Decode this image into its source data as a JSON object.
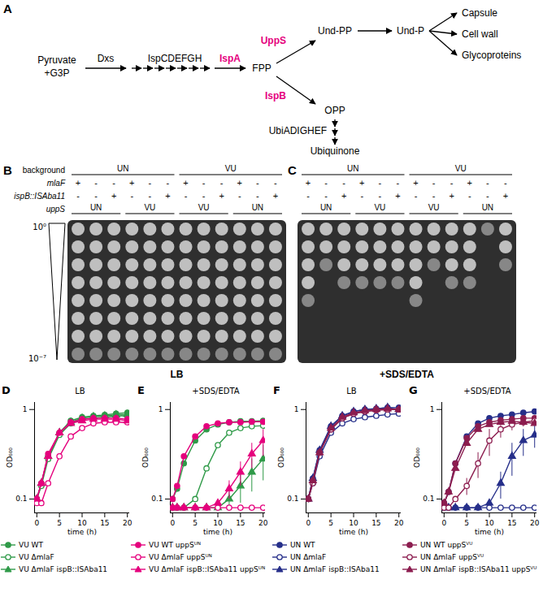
{
  "diagram": {
    "panel": "A",
    "metabolites": [
      "Pyruvate",
      "+G3P",
      "FPP",
      "Und-PP",
      "Und-P",
      "Capsule",
      "Cell wall",
      "Glycoproteins",
      "OPP",
      "Ubiquinone"
    ],
    "enzymes": [
      {
        "label": "Dxs",
        "highlight": false
      },
      {
        "label": "IspCDEFGH",
        "highlight": false
      },
      {
        "label": "IspA",
        "highlight": true
      },
      {
        "label": "UppS",
        "highlight": true
      },
      {
        "label": "IspB",
        "highlight": true
      },
      {
        "label": "UbiADIGHEF",
        "highlight": false
      }
    ],
    "highlight_color": "#e5007d"
  },
  "plates": {
    "row_labels": [
      "background",
      "mlaF",
      "ispB::ISAba11",
      "uppS"
    ],
    "background": [
      {
        "label": "UN",
        "span": 6
      },
      {
        "label": "VU",
        "span": 6
      }
    ],
    "mlaF": [
      "+",
      "-",
      "-",
      "+",
      "-",
      "-",
      "+",
      "-",
      "-",
      "+",
      "-",
      "-"
    ],
    "ispB": [
      "-",
      "-",
      "+",
      "-",
      "-",
      "+",
      "-",
      "-",
      "+",
      "-",
      "-",
      "+"
    ],
    "uppS": [
      {
        "label": "UN",
        "span": 3
      },
      {
        "label": "VU",
        "span": 3
      },
      {
        "label": "VU",
        "span": 3
      },
      {
        "label": "UN",
        "span": 3
      }
    ],
    "dilution_labels": [
      "10⁰",
      "10⁻⁷"
    ],
    "dilutions": 8,
    "panels": [
      {
        "panel": "B",
        "caption": "LB",
        "growth_rows": [
          8,
          8,
          8,
          8,
          8,
          8,
          8,
          8,
          8,
          8,
          8,
          8
        ]
      },
      {
        "panel": "C",
        "caption": "+SDS/EDTA",
        "growth_rows": [
          5,
          3,
          4,
          4,
          4,
          4,
          5,
          3,
          4,
          4,
          1,
          3
        ]
      }
    ]
  },
  "chart_data": [
    {
      "type": "line",
      "panel": "D",
      "title": "LB",
      "xlabel": "time (h)",
      "ylabel": "OD₆₀₀",
      "log": "y",
      "legend": "bottom",
      "xlim": [
        -0.5,
        20.5
      ],
      "xticks": [
        0,
        5,
        10,
        15,
        20
      ],
      "ylim": [
        0.07,
        1.2
      ],
      "yticks": [
        0.1,
        1
      ],
      "x": [
        0,
        1,
        2.5,
        5,
        7.5,
        10,
        12.5,
        15,
        17.5,
        20
      ],
      "series": [
        {
          "name": "VU WT",
          "color": "#2f9a48",
          "marker": "circle",
          "values": [
            0.1,
            0.15,
            0.3,
            0.55,
            0.75,
            0.82,
            0.85,
            0.87,
            0.9,
            0.92
          ]
        },
        {
          "name": "VU ΔmlaF",
          "color": "#2f9a48",
          "marker": "circle-open",
          "values": [
            0.1,
            0.14,
            0.28,
            0.52,
            0.7,
            0.78,
            0.8,
            0.82,
            0.85,
            0.85
          ]
        },
        {
          "name": "VU ΔmlaF ispB::ISAba11",
          "color": "#2f9a48",
          "marker": "triangle",
          "values": [
            0.1,
            0.15,
            0.3,
            0.55,
            0.72,
            0.8,
            0.83,
            0.85,
            0.87,
            0.88
          ]
        },
        {
          "name": "VU WT uppSᵁᴺ",
          "color": "#e5007d",
          "marker": "circle",
          "values": [
            0.1,
            0.15,
            0.32,
            0.55,
            0.72,
            0.78,
            0.8,
            0.8,
            0.8,
            0.78
          ]
        },
        {
          "name": "VU ΔmlaF uppSᵁᴺ",
          "color": "#e5007d",
          "marker": "circle-open",
          "values": [
            0.09,
            0.09,
            0.15,
            0.3,
            0.5,
            0.62,
            0.7,
            0.72,
            0.72,
            0.72
          ]
        },
        {
          "name": "VU ΔmlaF ispB::ISAba11 uppSᵁᴺ",
          "color": "#e5007d",
          "marker": "triangle",
          "values": [
            0.1,
            0.15,
            0.3,
            0.55,
            0.7,
            0.75,
            0.78,
            0.78,
            0.78,
            0.75
          ]
        }
      ]
    },
    {
      "type": "line",
      "panel": "E",
      "title": "+SDS/EDTA",
      "xlabel": "time (h)",
      "ylabel": "OD₆₀₀",
      "log": "y",
      "xlim": [
        -0.5,
        20.5
      ],
      "xticks": [
        0,
        5,
        10,
        15,
        20
      ],
      "ylim": [
        0.07,
        1.2
      ],
      "yticks": [
        0.1,
        1
      ],
      "x": [
        0,
        1,
        2.5,
        5,
        7.5,
        10,
        12.5,
        15,
        17.5,
        20
      ],
      "series": [
        {
          "name": "VU WT",
          "color": "#2f9a48",
          "marker": "circle",
          "values": [
            0.1,
            0.13,
            0.25,
            0.45,
            0.6,
            0.68,
            0.72,
            0.74,
            0.74,
            0.75
          ]
        },
        {
          "name": "VU ΔmlaF",
          "color": "#2f9a48",
          "marker": "circle-open",
          "values": [
            0.08,
            0.08,
            0.08,
            0.1,
            0.22,
            0.4,
            0.55,
            0.62,
            0.65,
            0.66
          ]
        },
        {
          "name": "VU ΔmlaF ispB::ISAba11",
          "color": "#2f9a48",
          "marker": "triangle",
          "values": [
            0.08,
            0.08,
            0.08,
            0.08,
            0.08,
            0.08,
            0.1,
            0.14,
            0.2,
            0.28
          ],
          "errors": [
            null,
            null,
            null,
            null,
            null,
            null,
            0.02,
            0.05,
            0.08,
            0.12
          ]
        },
        {
          "name": "VU WT uppSᵁᴺ",
          "color": "#e5007d",
          "marker": "circle",
          "values": [
            0.1,
            0.14,
            0.3,
            0.5,
            0.65,
            0.7,
            0.72,
            0.72,
            0.73,
            0.73
          ]
        },
        {
          "name": "VU ΔmlaF uppSᵁᴺ",
          "color": "#e5007d",
          "marker": "circle-open",
          "values": [
            0.08,
            0.08,
            0.08,
            0.08,
            0.08,
            0.08,
            0.08,
            0.08,
            0.08,
            0.08
          ]
        },
        {
          "name": "VU ΔmlaF ispB::ISAba11 uppSᵁᴺ",
          "color": "#e5007d",
          "marker": "triangle",
          "values": [
            0.08,
            0.08,
            0.08,
            0.08,
            0.08,
            0.09,
            0.13,
            0.2,
            0.32,
            0.45
          ],
          "errors": [
            null,
            null,
            null,
            null,
            null,
            null,
            0.03,
            0.06,
            0.1,
            0.15
          ]
        }
      ]
    },
    {
      "type": "line",
      "panel": "F",
      "title": "LB",
      "xlabel": "time (h)",
      "ylabel": "OD₆₀₀",
      "log": "y",
      "legend": "bottom",
      "xlim": [
        -0.5,
        20.5
      ],
      "xticks": [
        0,
        5,
        10,
        15,
        20
      ],
      "ylim": [
        0.07,
        1.2
      ],
      "yticks": [
        0.1,
        1
      ],
      "x": [
        0,
        1,
        2.5,
        5,
        7.5,
        10,
        12.5,
        15,
        17.5,
        20
      ],
      "series": [
        {
          "name": "UN WT",
          "color": "#262f8a",
          "marker": "circle",
          "values": [
            0.1,
            0.17,
            0.35,
            0.65,
            0.85,
            0.95,
            1.0,
            1.02,
            1.05,
            1.05
          ]
        },
        {
          "name": "UN ΔmlaF",
          "color": "#262f8a",
          "marker": "circle-open",
          "values": [
            0.1,
            0.15,
            0.3,
            0.55,
            0.7,
            0.78,
            0.82,
            0.85,
            0.88,
            0.9
          ]
        },
        {
          "name": "UN ΔmlaF ispB::ISAba11",
          "color": "#262f8a",
          "marker": "triangle",
          "values": [
            0.1,
            0.17,
            0.35,
            0.65,
            0.85,
            0.95,
            1.0,
            1.02,
            1.05,
            1.0
          ]
        },
        {
          "name": "UN WT uppSⱽᵁ",
          "color": "#8c1d4f",
          "marker": "circle",
          "values": [
            0.1,
            0.16,
            0.33,
            0.6,
            0.8,
            0.9,
            0.95,
            0.98,
            1.0,
            1.0
          ]
        },
        {
          "name": "UN ΔmlaF uppSⱽᵁ",
          "color": "#8c1d4f",
          "marker": "circle-open",
          "values": [
            0.1,
            0.15,
            0.33,
            0.6,
            0.8,
            0.9,
            0.95,
            1.0,
            1.0,
            1.0
          ]
        },
        {
          "name": "UN ΔmlaF ispB::ISAba11 uppSⱽᵁ",
          "color": "#8c1d4f",
          "marker": "triangle",
          "values": [
            0.1,
            0.16,
            0.33,
            0.62,
            0.82,
            0.92,
            0.97,
            1.0,
            1.02,
            1.0
          ]
        }
      ]
    },
    {
      "type": "line",
      "panel": "G",
      "title": "+SDS/EDTA",
      "xlabel": "time (h)",
      "ylabel": "OD₆₀₀",
      "log": "y",
      "xlim": [
        -0.5,
        20.5
      ],
      "xticks": [
        0,
        5,
        10,
        15,
        20
      ],
      "ylim": [
        0.07,
        1.2
      ],
      "yticks": [
        0.1,
        1
      ],
      "x": [
        0,
        1,
        2.5,
        5,
        7.5,
        10,
        12.5,
        15,
        17.5,
        20
      ],
      "series": [
        {
          "name": "UN WT",
          "color": "#262f8a",
          "marker": "circle",
          "values": [
            0.09,
            0.12,
            0.25,
            0.5,
            0.7,
            0.8,
            0.85,
            0.88,
            0.92,
            0.95
          ]
        },
        {
          "name": "UN ΔmlaF",
          "color": "#262f8a",
          "marker": "circle-open",
          "values": [
            0.08,
            0.08,
            0.08,
            0.08,
            0.08,
            0.08,
            0.08,
            0.08,
            0.08,
            0.08
          ]
        },
        {
          "name": "UN ΔmlaF ispB::ISAba11",
          "color": "#262f8a",
          "marker": "triangle",
          "values": [
            0.08,
            0.08,
            0.08,
            0.08,
            0.08,
            0.09,
            0.15,
            0.3,
            0.45,
            0.52
          ],
          "errors": [
            null,
            null,
            null,
            null,
            null,
            null,
            0.05,
            0.12,
            0.15,
            0.15
          ]
        },
        {
          "name": "UN WT uppSⱽᵁ",
          "color": "#8c1d4f",
          "marker": "circle",
          "values": [
            0.09,
            0.12,
            0.25,
            0.48,
            0.65,
            0.72,
            0.76,
            0.78,
            0.8,
            0.8
          ]
        },
        {
          "name": "UN ΔmlaF uppSⱽᵁ",
          "color": "#8c1d4f",
          "marker": "circle-open",
          "values": [
            0.08,
            0.08,
            0.1,
            0.14,
            0.25,
            0.45,
            0.6,
            0.68,
            0.72,
            0.75
          ],
          "errors": [
            null,
            null,
            null,
            0.03,
            0.08,
            0.15,
            0.12,
            0.1,
            0.08,
            0.06
          ]
        },
        {
          "name": "UN ΔmlaF ispB::ISAba11 uppSⱽᵁ",
          "color": "#8c1d4f",
          "marker": "triangle",
          "values": [
            0.09,
            0.12,
            0.22,
            0.42,
            0.6,
            0.68,
            0.72,
            0.74,
            0.72,
            0.7
          ]
        }
      ]
    }
  ]
}
